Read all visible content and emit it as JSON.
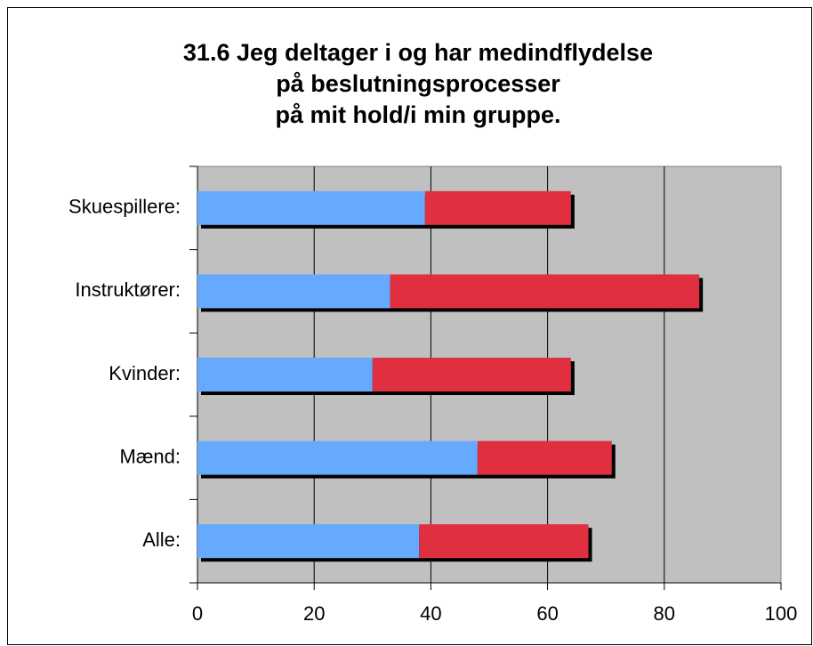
{
  "chart_data": {
    "type": "stacked-bar-horizontal",
    "title": [
      "31.6 Jeg deltager i og har medindflydelse",
      "på beslutningsprocesser",
      "på mit hold/i min gruppe."
    ],
    "categories": [
      "Skuespillere:",
      "Instruktører:",
      "Kvinder:",
      "Mænd:",
      "Alle:"
    ],
    "series": [
      {
        "color": "#66aaff",
        "values": [
          39,
          33,
          30,
          48,
          38
        ]
      },
      {
        "color": "#e03040",
        "values": [
          25,
          53,
          34,
          23,
          29
        ]
      }
    ],
    "xlim": [
      0,
      100
    ],
    "xticks": [
      0,
      20,
      40,
      60,
      80,
      100
    ],
    "grid": true,
    "shadow": true
  }
}
